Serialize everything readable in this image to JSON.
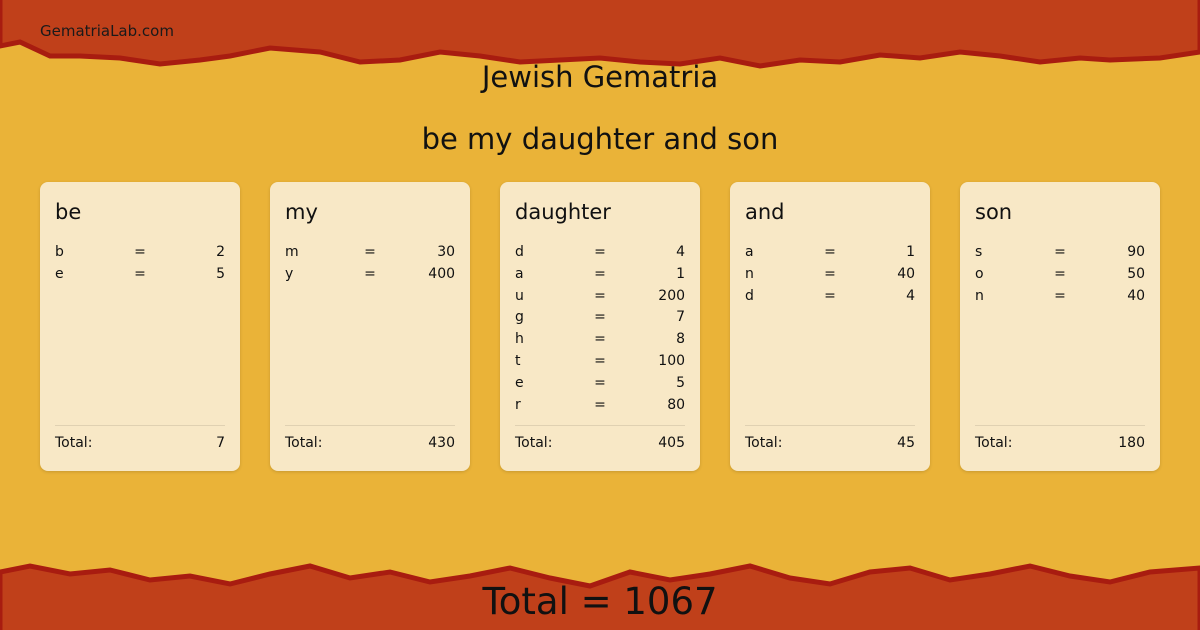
{
  "site": "GematriaLab.com",
  "title": "Jewish Gematria",
  "phrase": "be my daughter and son",
  "colors": {
    "band": "#c0401a",
    "edge": "#a81c10",
    "background": "#eab338",
    "card": "#f8e8c6"
  },
  "total_label": "Total:",
  "words": [
    {
      "word": "be",
      "letters": [
        [
          "b",
          "=",
          "2"
        ],
        [
          "e",
          "=",
          "5"
        ]
      ],
      "total": "7"
    },
    {
      "word": "my",
      "letters": [
        [
          "m",
          "=",
          "30"
        ],
        [
          "y",
          "=",
          "400"
        ]
      ],
      "total": "430"
    },
    {
      "word": "daughter",
      "letters": [
        [
          "d",
          "=",
          "4"
        ],
        [
          "a",
          "=",
          "1"
        ],
        [
          "u",
          "=",
          "200"
        ],
        [
          "g",
          "=",
          "7"
        ],
        [
          "h",
          "=",
          "8"
        ],
        [
          "t",
          "=",
          "100"
        ],
        [
          "e",
          "=",
          "5"
        ],
        [
          "r",
          "=",
          "80"
        ]
      ],
      "total": "405"
    },
    {
      "word": "and",
      "letters": [
        [
          "a",
          "=",
          "1"
        ],
        [
          "n",
          "=",
          "40"
        ],
        [
          "d",
          "=",
          "4"
        ]
      ],
      "total": "45"
    },
    {
      "word": "son",
      "letters": [
        [
          "s",
          "=",
          "90"
        ],
        [
          "o",
          "=",
          "50"
        ],
        [
          "n",
          "=",
          "40"
        ]
      ],
      "total": "180"
    }
  ],
  "grand_total": "Total = 1067"
}
